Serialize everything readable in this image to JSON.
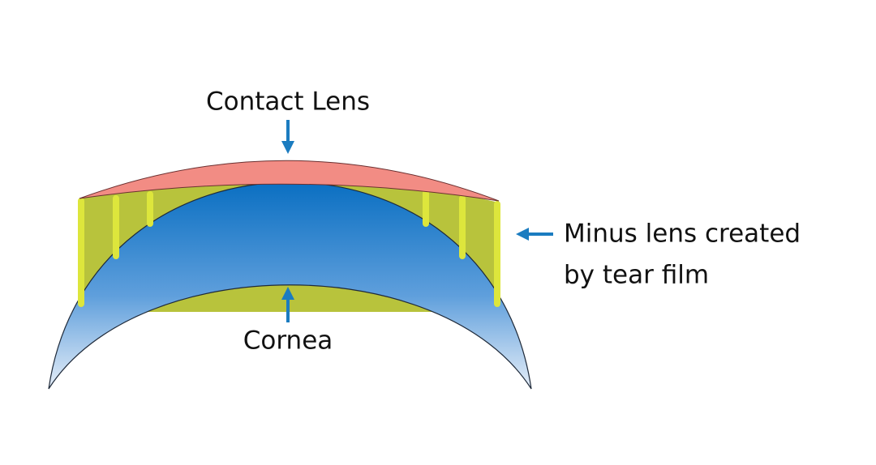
{
  "labels": {
    "contact_lens": "Contact Lens",
    "cornea": "Cornea",
    "minus_lens": [
      "Minus lens created",
      "by tear film"
    ]
  }
}
